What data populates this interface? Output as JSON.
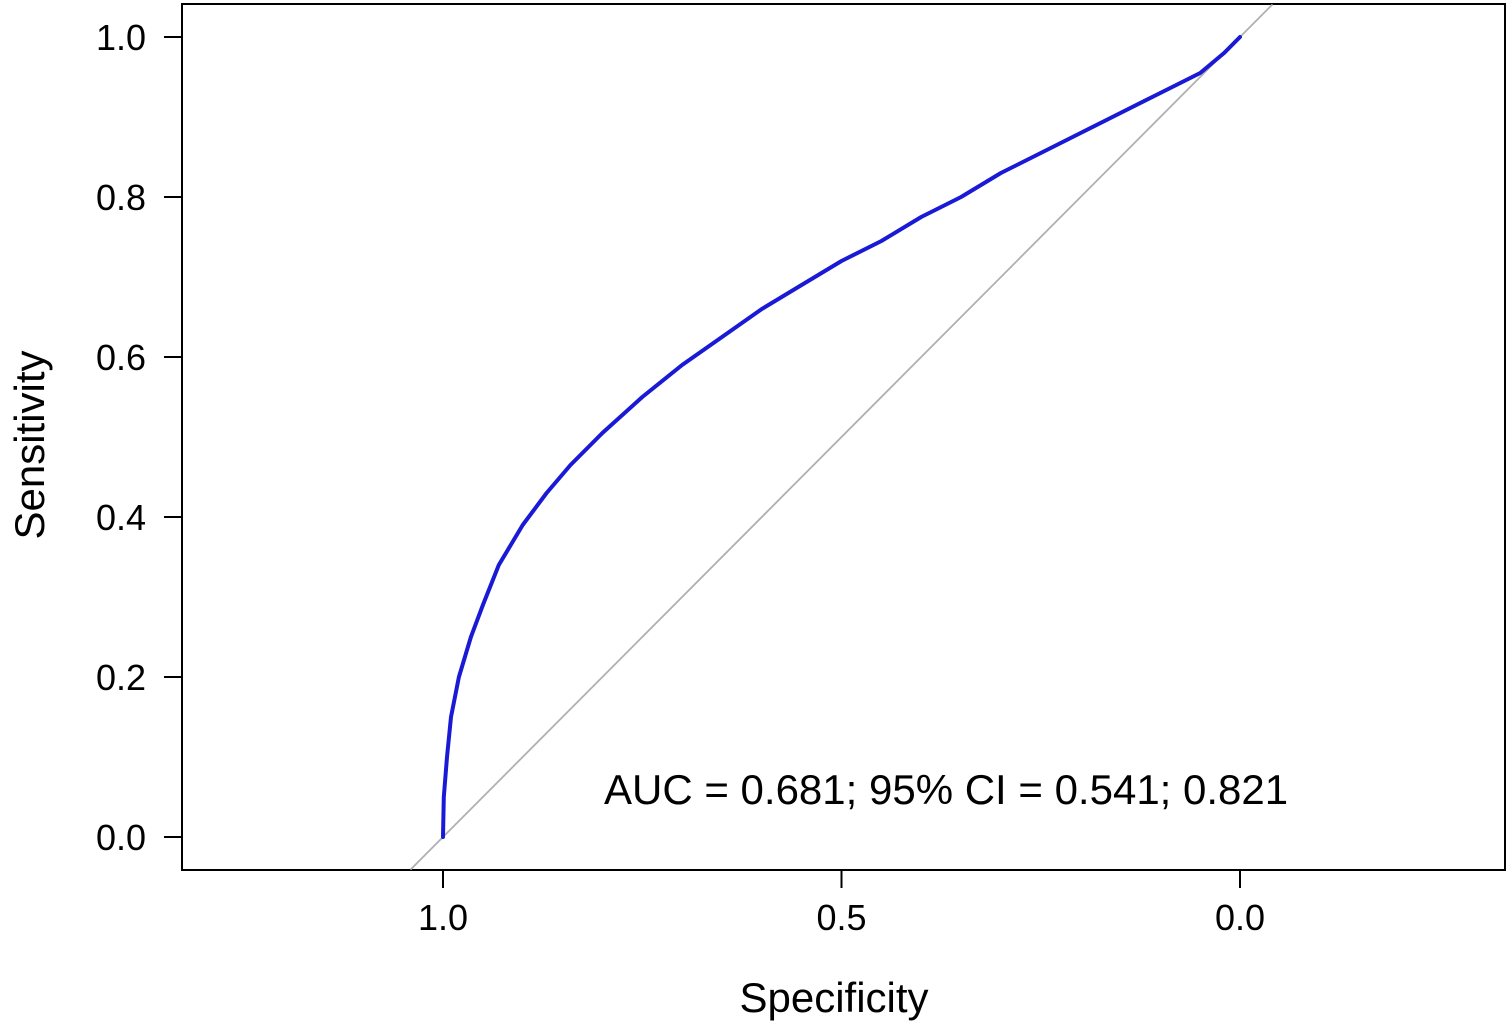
{
  "chart_data": {
    "type": "line",
    "title": "",
    "xlabel": "Specificity",
    "ylabel": "Sensitivity",
    "x_reversed": true,
    "xlim": [
      1.33,
      -0.33
    ],
    "ylim": [
      -0.04,
      1.04
    ],
    "x_ticks": [
      1.0,
      0.5,
      0.0
    ],
    "x_tick_labels": [
      "1.0",
      "0.5",
      "0.0"
    ],
    "y_ticks": [
      0.0,
      0.2,
      0.4,
      0.6,
      0.8,
      1.0
    ],
    "y_tick_labels": [
      "0.0",
      "0.2",
      "0.4",
      "0.6",
      "0.8",
      "1.0"
    ],
    "grid": false,
    "annotation": "AUC = 0.681; 95% CI = 0.541; 0.821",
    "series": [
      {
        "color": "#1a1ad6",
        "x": [
          1.0,
          0.999,
          0.995,
          0.99,
          0.98,
          0.965,
          0.95,
          0.93,
          0.9,
          0.87,
          0.84,
          0.8,
          0.75,
          0.7,
          0.65,
          0.6,
          0.55,
          0.5,
          0.45,
          0.4,
          0.35,
          0.3,
          0.25,
          0.2,
          0.15,
          0.1,
          0.05,
          0.02,
          0.0
        ],
        "y": [
          0.0,
          0.05,
          0.1,
          0.15,
          0.2,
          0.25,
          0.29,
          0.34,
          0.39,
          0.43,
          0.465,
          0.505,
          0.55,
          0.59,
          0.625,
          0.66,
          0.69,
          0.72,
          0.745,
          0.775,
          0.8,
          0.83,
          0.855,
          0.88,
          0.905,
          0.93,
          0.955,
          0.98,
          1.0
        ]
      },
      {
        "color": "#b0b0b0",
        "x": [
          1.04,
          -0.04
        ],
        "y": [
          -0.04,
          1.04
        ]
      }
    ]
  }
}
